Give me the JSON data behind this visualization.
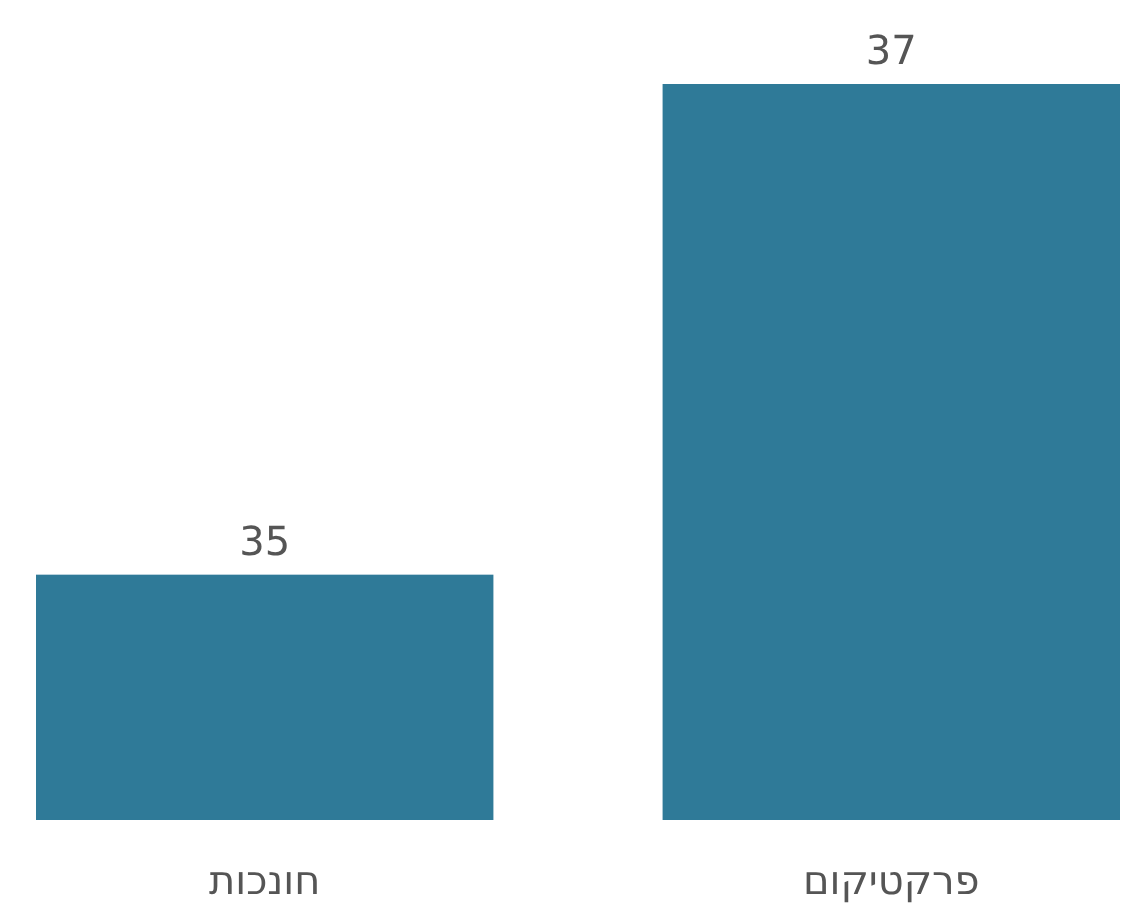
{
  "chart_data": {
    "type": "bar",
    "categories": [
      "חונכות",
      "פרקטיקום"
    ],
    "values": [
      35,
      37
    ],
    "color": "#2f7a98",
    "ylim": [
      34,
      37
    ],
    "data_labels": true
  }
}
